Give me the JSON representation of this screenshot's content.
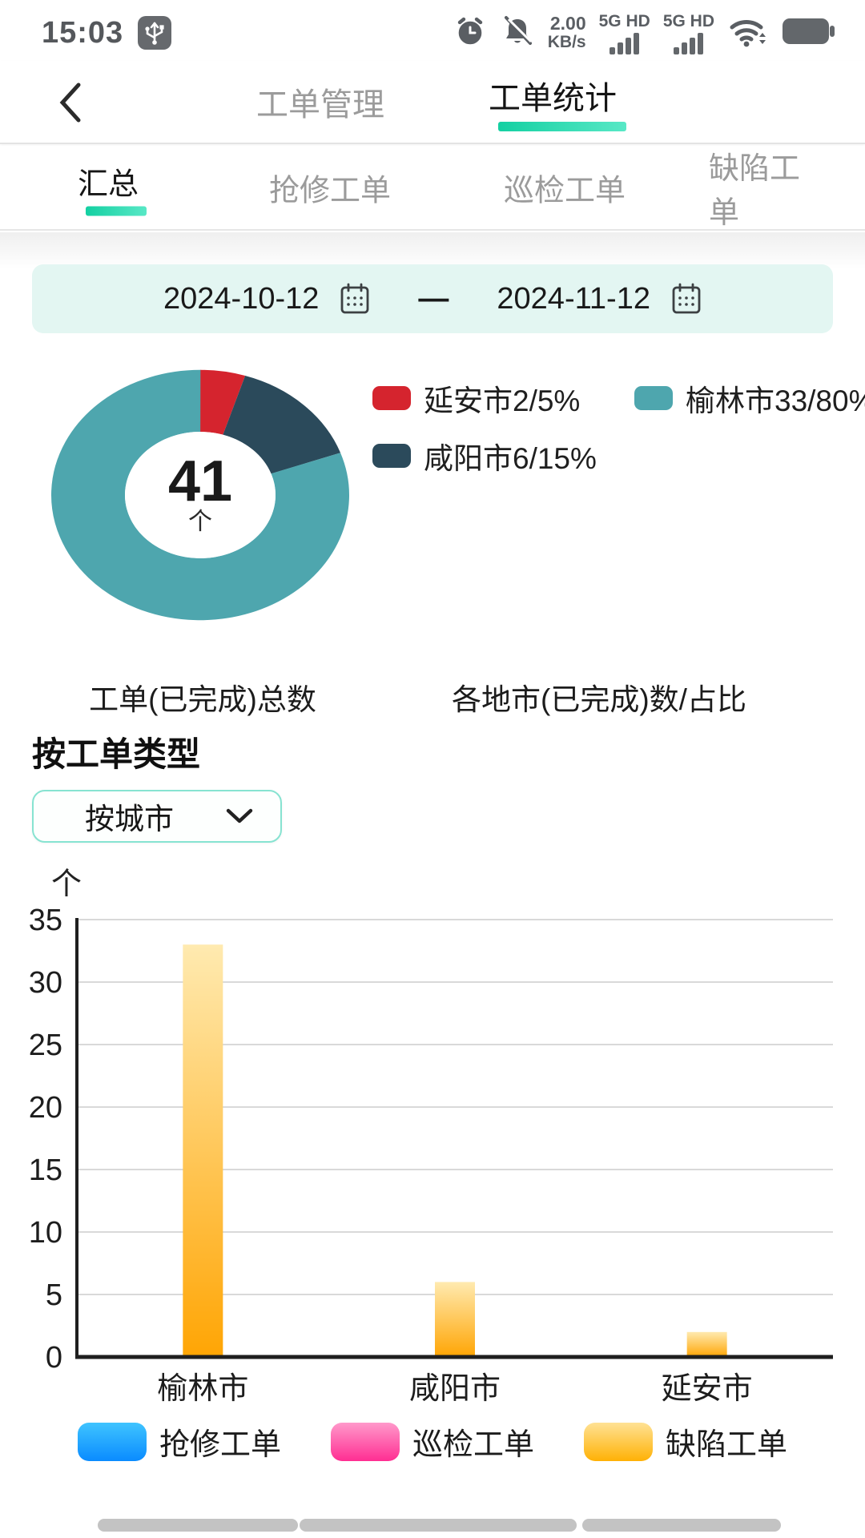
{
  "status_bar": {
    "time": "15:03",
    "speed_value": "2.00",
    "speed_unit": "KB/s",
    "sim1_label": "5G HD",
    "sim2_label": "5G HD"
  },
  "nav": {
    "tabs": [
      {
        "label": "工单管理",
        "active": false
      },
      {
        "label": "工单统计",
        "active": true
      }
    ]
  },
  "subtabs": [
    {
      "label": "汇总",
      "active": true
    },
    {
      "label": "抢修工单",
      "active": false
    },
    {
      "label": "巡检工单",
      "active": false
    },
    {
      "label": "缺陷工单",
      "active": false
    }
  ],
  "date_range": {
    "start": "2024-10-12",
    "separator": "—",
    "end": "2024-11-12"
  },
  "captions": {
    "donut": "工单(已完成)总数",
    "legend": "各地市(已完成)数/占比"
  },
  "section": {
    "title": "按工单类型",
    "filter_value": "按城市"
  },
  "chart_data": [
    {
      "type": "pie",
      "subtype": "donut",
      "title": "工单(已完成)总数",
      "center_value": "41",
      "center_unit": "个",
      "slices": [
        {
          "label": "延安市",
          "value": 2,
          "percent": "5%",
          "color": "#d5242e"
        },
        {
          "label": "咸阳市",
          "value": 6,
          "percent": "15%",
          "color": "#2b4a5b"
        },
        {
          "label": "榆林市",
          "value": 33,
          "percent": "80%",
          "color": "#4ea6ae"
        }
      ],
      "legend_note": "各地市(已完成)数/占比"
    },
    {
      "type": "bar",
      "categories": [
        "榆林市",
        "咸阳市",
        "延安市"
      ],
      "values": [
        33,
        6,
        2
      ],
      "ylabel_unit": "个",
      "ylim": [
        0,
        35
      ],
      "tick_step": 5,
      "grid": true,
      "bar_gradient": {
        "top": "#ffeab0",
        "bottom": "#ffa504"
      },
      "legend": [
        {
          "label": "抢修工单",
          "color_top": "#3fc4ff",
          "color_bottom": "#0a8bff"
        },
        {
          "label": "巡检工单",
          "color_top": "#ff99cb",
          "color_bottom": "#ff2e92"
        },
        {
          "label": "缺陷工单",
          "color_top": "#ffe294",
          "color_bottom": "#ffb105"
        }
      ],
      "legend_position": "bottom"
    }
  ]
}
